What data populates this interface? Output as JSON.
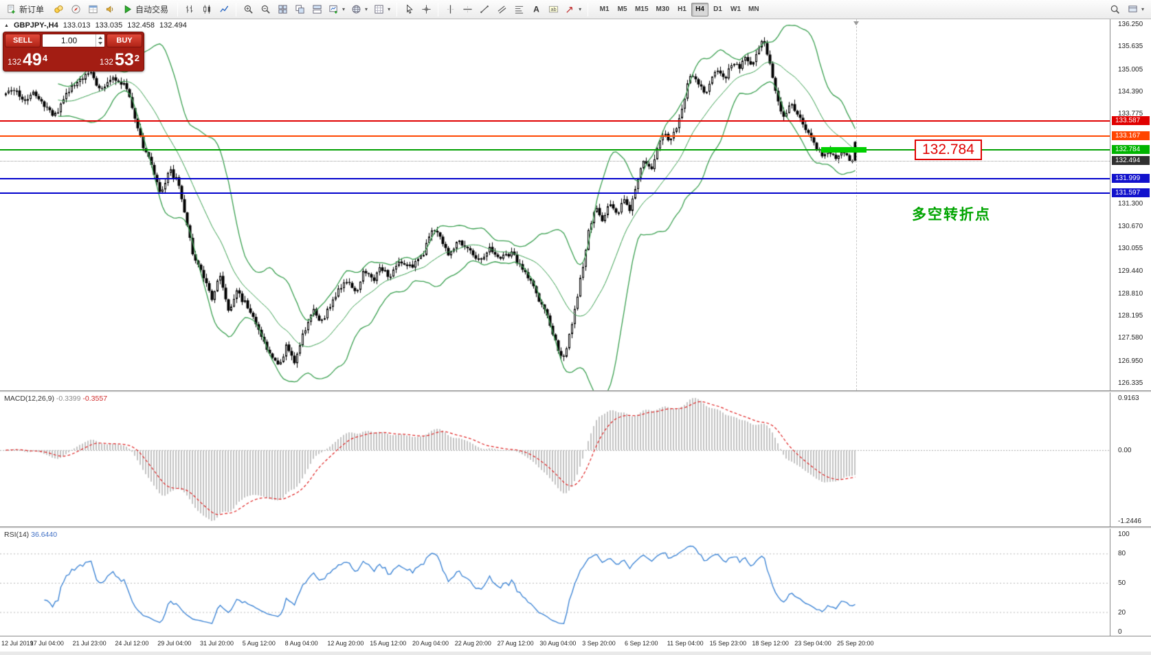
{
  "toolbar": {
    "groups": [
      {
        "name": "file",
        "items": [
          {
            "name": "new-order",
            "label": "新订单"
          },
          {
            "name": "market-watch"
          },
          {
            "name": "navigator"
          },
          {
            "name": "data-window"
          },
          {
            "name": "news"
          },
          {
            "name": "autotrading",
            "label": "自动交易"
          }
        ]
      },
      {
        "name": "chart-type",
        "items": [
          {
            "name": "bar-chart"
          },
          {
            "name": "candlestick-chart"
          },
          {
            "name": "line-chart"
          }
        ]
      },
      {
        "name": "windows",
        "items": [
          {
            "name": "zoom-in"
          },
          {
            "name": "zoom-out"
          },
          {
            "name": "tile-windows"
          },
          {
            "name": "cascade-windows"
          },
          {
            "name": "arrange-windows"
          },
          {
            "name": "new-chart",
            "caret": true
          },
          {
            "name": "profiles",
            "caret": true
          },
          {
            "name": "templates",
            "caret": true
          }
        ]
      },
      {
        "name": "cursor",
        "items": [
          {
            "name": "cursor"
          },
          {
            "name": "crosshair"
          }
        ]
      },
      {
        "name": "objects",
        "items": [
          {
            "name": "vertical-line"
          },
          {
            "name": "horizontal-line"
          },
          {
            "name": "trendline"
          },
          {
            "name": "equidistant-channel"
          },
          {
            "name": "fibonacci"
          },
          {
            "name": "text"
          },
          {
            "name": "text-label"
          },
          {
            "name": "arrow-tools",
            "caret": true
          }
        ]
      }
    ],
    "timeframes": {
      "options": [
        "M1",
        "M5",
        "M15",
        "M30",
        "H1",
        "H4",
        "D1",
        "W1",
        "MN"
      ],
      "active": "H4"
    },
    "right_items": [
      {
        "name": "search"
      },
      {
        "name": "layout",
        "caret": true
      }
    ]
  },
  "symbol_header": {
    "symbol": "GBPJPY-,H4",
    "open": "133.013",
    "high": "133.035",
    "low": "132.458",
    "close": "132.494"
  },
  "trade_panel": {
    "sell_label": "SELL",
    "buy_label": "BUY",
    "volume": "1.00",
    "sell_price_big": "132",
    "sell_price_pips": "49",
    "sell_price_pt": "4",
    "buy_price_big": "132",
    "buy_price_pips": "53",
    "buy_price_pt": "2"
  },
  "price_scale": {
    "range_max": 136.25,
    "range_min": 126.335,
    "ticks": [
      "136.250",
      "135.635",
      "135.005",
      "134.390",
      "133.775",
      "131.300",
      "130.670",
      "130.055",
      "129.440",
      "128.810",
      "128.195",
      "127.580",
      "126.950",
      "126.335"
    ]
  },
  "levels": [
    {
      "name": "resistance-1",
      "price": 133.587,
      "label": "133.587",
      "color": "#e00000",
      "label_bg": "#e00000"
    },
    {
      "name": "resistance-2",
      "price": 133.167,
      "label": "133.167",
      "color": "#ff4500",
      "label_bg": "#ff4500"
    },
    {
      "name": "pivot-green",
      "price": 132.784,
      "label": "132.784",
      "color": "#00a000",
      "label_bg": "#00b400"
    },
    {
      "name": "support-1",
      "price": 131.999,
      "label": "131.999",
      "color": "#0000cc",
      "label_bg": "#1212cc"
    },
    {
      "name": "support-2",
      "price": 131.597,
      "label": "131.597",
      "color": "#0000cc",
      "label_bg": "#1212cc"
    }
  ],
  "current_price": {
    "value": 132.494,
    "label": "132.494",
    "label_bg": "#303030"
  },
  "annotations": {
    "price_box": "132.784",
    "price_box_color": "#e00000",
    "note_text": "多空转折点",
    "note_color": "#00a400",
    "highlight_color": "#00d000"
  },
  "macd_panel": {
    "title": "MACD(12,26,9)",
    "value_main": "-0.3399",
    "value_signal": "-0.3557",
    "scale_max": "0.9163",
    "scale_zero": "0.00",
    "scale_min": "-1.2446"
  },
  "rsi_panel": {
    "title": "RSI(14)",
    "value": "36.6440",
    "scale": [
      100,
      80,
      50,
      20,
      0
    ]
  },
  "time_axis": [
    "12 Jul 2019",
    "17 Jul 04:00",
    "21 Jul 23:00",
    "24 Jul 12:00",
    "29 Jul 04:00",
    "31 Jul 20:00",
    "5 Aug 12:00",
    "8 Aug 04:00",
    "12 Aug 20:00",
    "15 Aug 12:00",
    "20 Aug 04:00",
    "22 Aug 20:00",
    "27 Aug 12:00",
    "30 Aug 04:00",
    "3 Sep 20:00",
    "6 Sep 12:00",
    "11 Sep 04:00",
    "15 Sep 23:00",
    "18 Sep 12:00",
    "23 Sep 04:00",
    "25 Sep 20:00"
  ],
  "chart_data": {
    "type": "candlestick",
    "symbol": "GBPJPY",
    "timeframe": "H4",
    "last_bar": {
      "open": 133.013,
      "high": 133.035,
      "low": 132.458,
      "close": 132.494
    },
    "candle_count": 310,
    "price_anchors": [
      [
        0.0,
        134.3
      ],
      [
        0.008,
        134.55
      ],
      [
        0.02,
        134.15
      ],
      [
        0.032,
        134.4
      ],
      [
        0.045,
        134.0
      ],
      [
        0.058,
        133.75
      ],
      [
        0.072,
        134.35
      ],
      [
        0.085,
        134.7
      ],
      [
        0.1,
        134.9
      ],
      [
        0.112,
        134.45
      ],
      [
        0.125,
        134.8
      ],
      [
        0.14,
        134.55
      ],
      [
        0.15,
        133.9
      ],
      [
        0.16,
        132.95
      ],
      [
        0.172,
        132.4
      ],
      [
        0.182,
        131.55
      ],
      [
        0.192,
        132.25
      ],
      [
        0.202,
        131.95
      ],
      [
        0.212,
        130.85
      ],
      [
        0.222,
        129.75
      ],
      [
        0.232,
        129.4
      ],
      [
        0.242,
        128.65
      ],
      [
        0.252,
        129.3
      ],
      [
        0.262,
        128.35
      ],
      [
        0.272,
        128.85
      ],
      [
        0.282,
        128.55
      ],
      [
        0.292,
        128.15
      ],
      [
        0.302,
        127.55
      ],
      [
        0.312,
        127.05
      ],
      [
        0.322,
        126.75
      ],
      [
        0.33,
        127.35
      ],
      [
        0.34,
        126.9
      ],
      [
        0.35,
        127.7
      ],
      [
        0.362,
        128.35
      ],
      [
        0.372,
        128.05
      ],
      [
        0.382,
        128.5
      ],
      [
        0.392,
        128.95
      ],
      [
        0.402,
        129.2
      ],
      [
        0.412,
        128.85
      ],
      [
        0.422,
        129.45
      ],
      [
        0.432,
        129.15
      ],
      [
        0.442,
        129.55
      ],
      [
        0.452,
        129.3
      ],
      [
        0.462,
        129.75
      ],
      [
        0.472,
        129.5
      ],
      [
        0.482,
        129.65
      ],
      [
        0.492,
        129.95
      ],
      [
        0.502,
        130.65
      ],
      [
        0.512,
        130.3
      ],
      [
        0.522,
        129.9
      ],
      [
        0.532,
        130.25
      ],
      [
        0.545,
        130.05
      ],
      [
        0.558,
        129.75
      ],
      [
        0.57,
        130.05
      ],
      [
        0.582,
        129.8
      ],
      [
        0.595,
        129.95
      ],
      [
        0.608,
        129.5
      ],
      [
        0.618,
        129.15
      ],
      [
        0.628,
        128.55
      ],
      [
        0.638,
        128.2
      ],
      [
        0.648,
        127.45
      ],
      [
        0.656,
        126.95
      ],
      [
        0.663,
        127.65
      ],
      [
        0.671,
        128.45
      ],
      [
        0.679,
        129.55
      ],
      [
        0.687,
        130.65
      ],
      [
        0.695,
        131.25
      ],
      [
        0.703,
        130.75
      ],
      [
        0.711,
        131.35
      ],
      [
        0.719,
        130.95
      ],
      [
        0.727,
        131.45
      ],
      [
        0.735,
        131.15
      ],
      [
        0.743,
        131.95
      ],
      [
        0.751,
        132.45
      ],
      [
        0.759,
        132.2
      ],
      [
        0.767,
        132.85
      ],
      [
        0.775,
        133.25
      ],
      [
        0.783,
        133.05
      ],
      [
        0.791,
        133.55
      ],
      [
        0.799,
        134.25
      ],
      [
        0.807,
        134.95
      ],
      [
        0.815,
        134.6
      ],
      [
        0.823,
        134.35
      ],
      [
        0.831,
        134.8
      ],
      [
        0.839,
        135.05
      ],
      [
        0.847,
        134.7
      ],
      [
        0.855,
        135.25
      ],
      [
        0.863,
        135.05
      ],
      [
        0.871,
        135.4
      ],
      [
        0.879,
        135.15
      ],
      [
        0.887,
        135.7
      ],
      [
        0.892,
        135.9
      ],
      [
        0.898,
        135.35
      ],
      [
        0.904,
        134.65
      ],
      [
        0.91,
        134.05
      ],
      [
        0.916,
        133.65
      ],
      [
        0.922,
        134.1
      ],
      [
        0.93,
        133.9
      ],
      [
        0.938,
        133.55
      ],
      [
        0.946,
        133.2
      ],
      [
        0.954,
        132.9
      ],
      [
        0.962,
        132.6
      ],
      [
        0.97,
        132.78
      ],
      [
        0.978,
        132.48
      ],
      [
        0.986,
        132.72
      ],
      [
        0.993,
        132.55
      ],
      [
        1.0,
        132.49
      ]
    ],
    "indicators": [
      {
        "type": "bollinger",
        "period": 20,
        "deviation": 2,
        "color": "#3aa050"
      },
      {
        "type": "macd",
        "fast": 12,
        "slow": 26,
        "signal": 9,
        "last_main": -0.3399,
        "last_signal": -0.3557,
        "scale_max": 0.9163,
        "scale_min": -1.2446
      },
      {
        "type": "rsi",
        "period": 14,
        "last": 36.644,
        "levels": [
          80,
          50,
          20
        ]
      }
    ],
    "horizontal_lines": [
      133.587,
      133.167,
      132.784,
      131.999,
      131.597
    ]
  }
}
